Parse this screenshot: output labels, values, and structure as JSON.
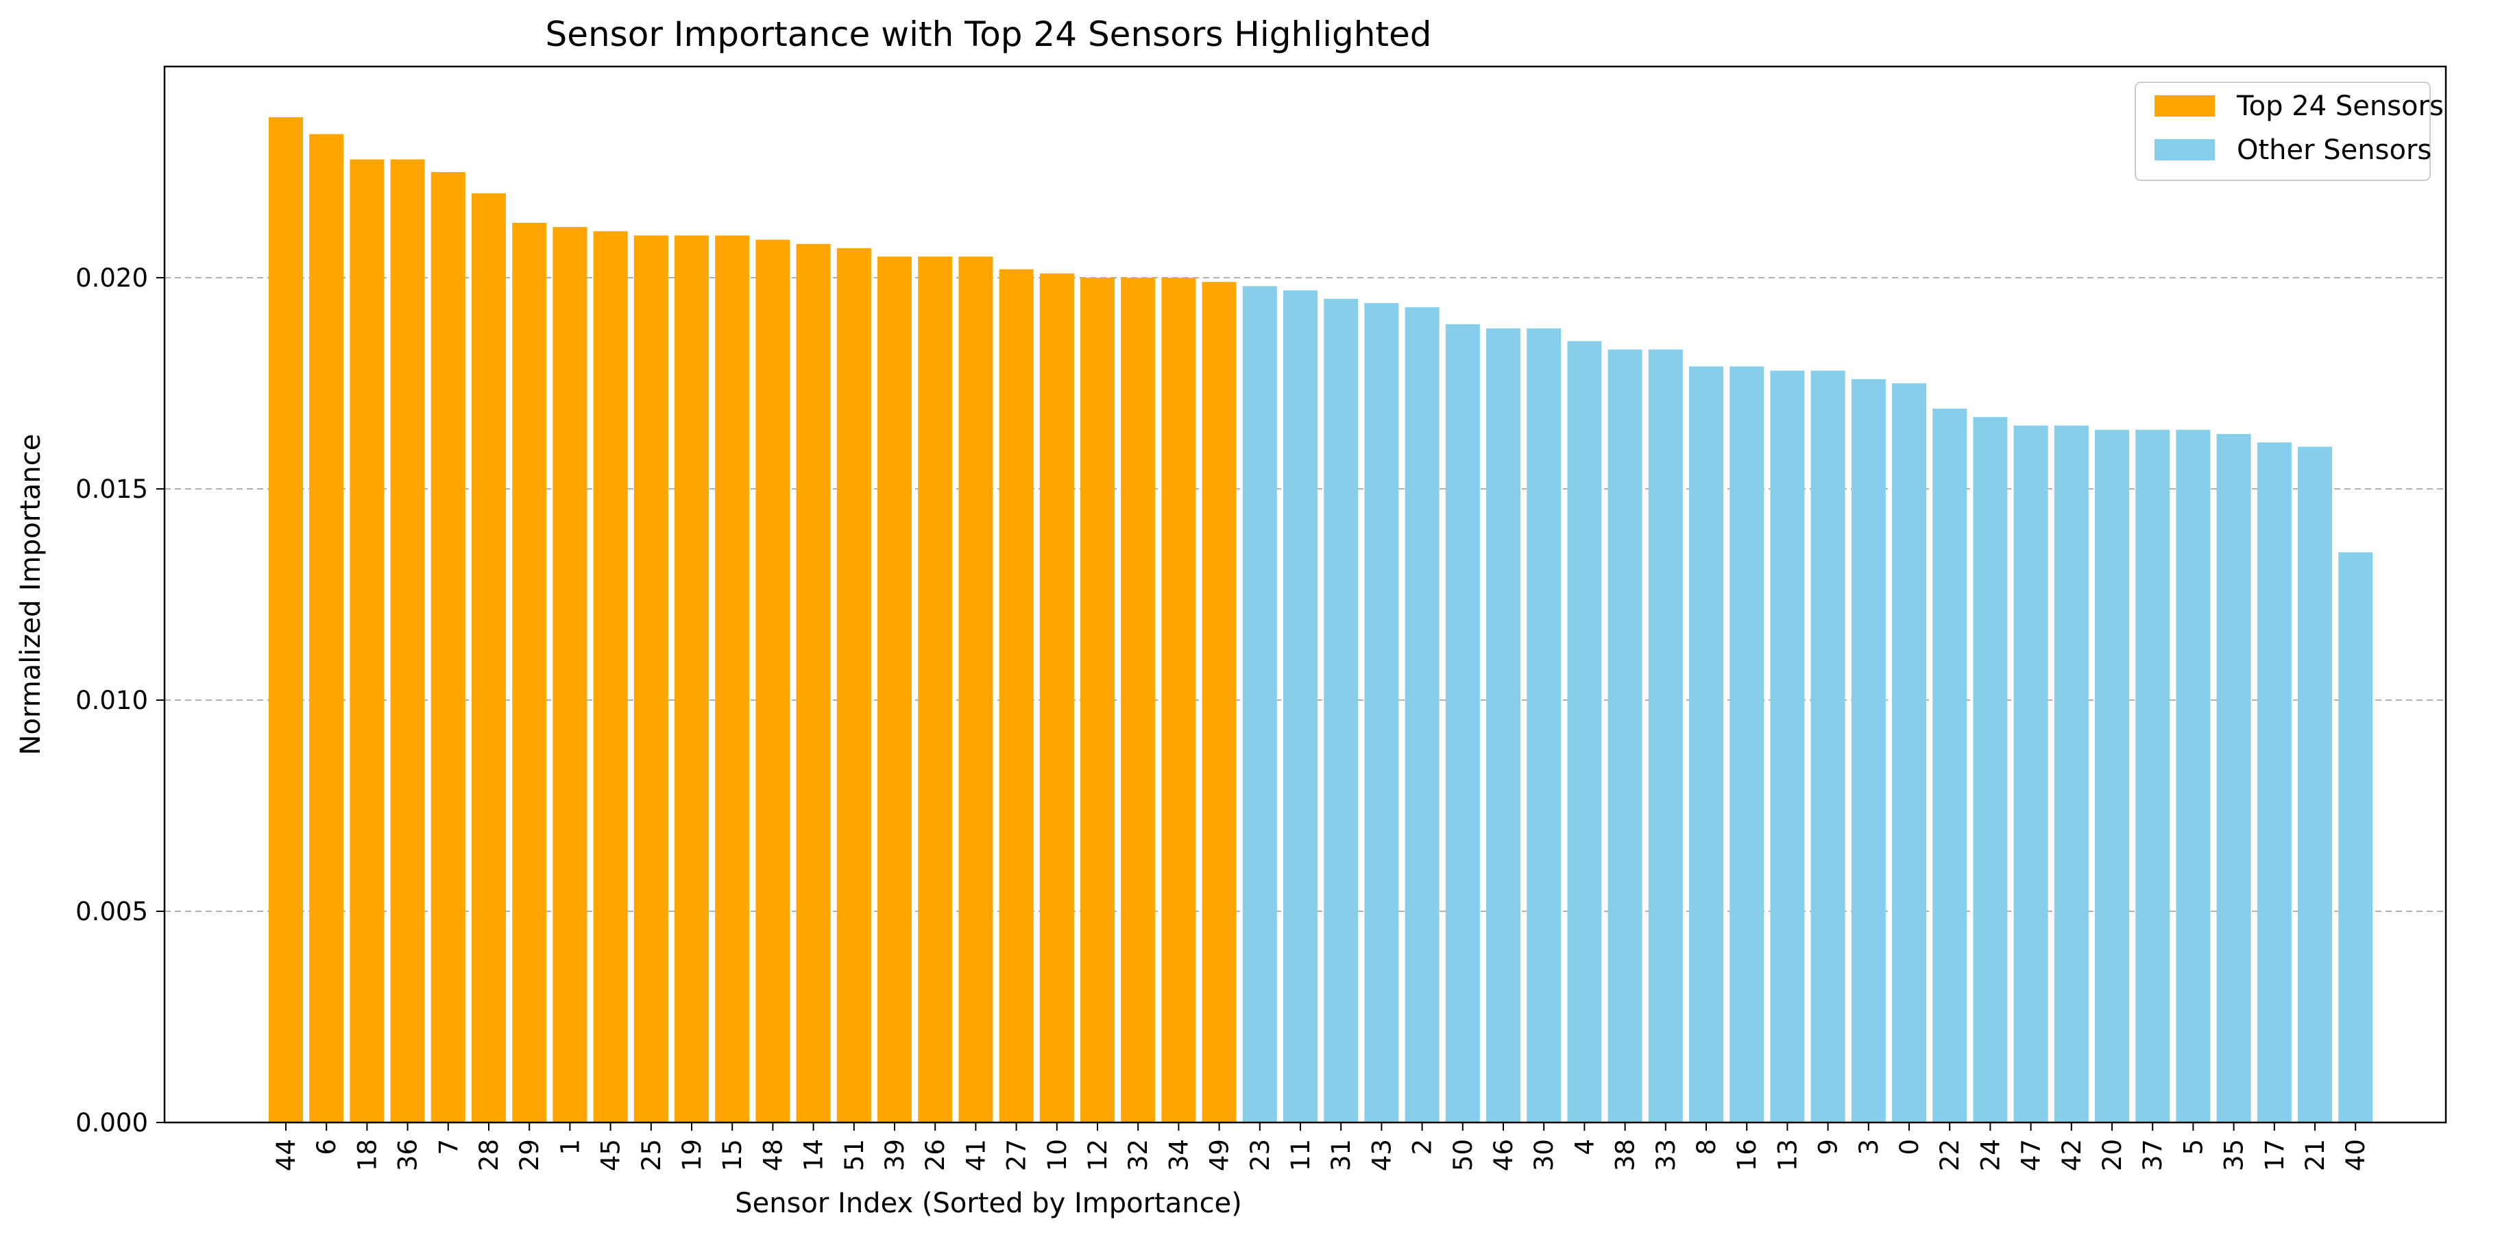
{
  "chart_data": {
    "type": "bar",
    "title": "Sensor Importance with Top 24 Sensors Highlighted",
    "xlabel": "Sensor Index (Sorted by Importance)",
    "ylabel": "Normalized Importance",
    "ylim": [
      0,
      0.025
    ],
    "yticks": [
      "0.000",
      "0.005",
      "0.010",
      "0.015",
      "0.020"
    ],
    "ytick_values": [
      0,
      0.005,
      0.01,
      0.015,
      0.02
    ],
    "grid": "y-dashed",
    "legend_position": "top-right",
    "top_n": 24,
    "categories": [
      "44",
      "6",
      "18",
      "36",
      "7",
      "28",
      "29",
      "1",
      "45",
      "25",
      "19",
      "15",
      "48",
      "14",
      "51",
      "39",
      "26",
      "41",
      "27",
      "10",
      "12",
      "32",
      "34",
      "49",
      "23",
      "11",
      "31",
      "43",
      "2",
      "50",
      "46",
      "30",
      "4",
      "38",
      "33",
      "8",
      "16",
      "13",
      "9",
      "3",
      "0",
      "22",
      "24",
      "47",
      "42",
      "20",
      "37",
      "5",
      "35",
      "17",
      "21",
      "40"
    ],
    "values": [
      0.0238,
      0.0234,
      0.0228,
      0.0228,
      0.0225,
      0.022,
      0.0213,
      0.0212,
      0.0211,
      0.021,
      0.021,
      0.021,
      0.0209,
      0.0208,
      0.0207,
      0.0205,
      0.0205,
      0.0205,
      0.0202,
      0.0201,
      0.02,
      0.02,
      0.02,
      0.0199,
      0.0198,
      0.0197,
      0.0195,
      0.0194,
      0.0193,
      0.0189,
      0.0188,
      0.0188,
      0.0185,
      0.0183,
      0.0183,
      0.0179,
      0.0179,
      0.0178,
      0.0178,
      0.0176,
      0.0175,
      0.0169,
      0.0167,
      0.0165,
      0.0165,
      0.0164,
      0.0164,
      0.0164,
      0.0163,
      0.0161,
      0.016,
      0.0135
    ],
    "series": [
      {
        "name": "Top 24 Sensors",
        "color": "#FFA500"
      },
      {
        "name": "Other Sensors",
        "color": "#87CEEB"
      }
    ]
  }
}
